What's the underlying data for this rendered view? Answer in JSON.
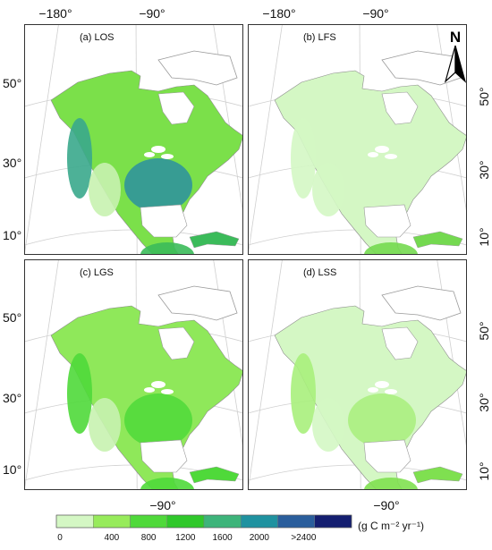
{
  "panels": [
    {
      "id": "a",
      "label": "(a)  LOS",
      "shade": "los"
    },
    {
      "id": "b",
      "label": "(b)  LFS",
      "shade": "lfs"
    },
    {
      "id": "c",
      "label": "(c)  LGS",
      "shade": "lgs"
    },
    {
      "id": "d",
      "label": "(d)  LSS",
      "shade": "lss"
    }
  ],
  "top_ticks": [
    "−180°",
    "−90°"
  ],
  "bottom_tick": "−90°",
  "lat_ticks": [
    "50°",
    "30°",
    "10°"
  ],
  "north_arrow": "N",
  "legend": {
    "colors": [
      "#d4f7c4",
      "#97eb5b",
      "#4fd93a",
      "#2fc82a",
      "#3db47a",
      "#1f92a0",
      "#2a5e9c",
      "#141e70"
    ],
    "ticks": [
      "0",
      "400",
      "800",
      "1200",
      "1600",
      "2000",
      ">2400"
    ],
    "unit": "(g C m⁻² yr⁻¹)"
  },
  "shades": {
    "los": {
      "base": "#7be04a",
      "west": "#3aa88c",
      "east": "#2c8fa0",
      "desert": "#c8f2b0",
      "tropic": "#3bbb5a"
    },
    "lfs": {
      "base": "#d4f7c4",
      "west": "#d4f7c4",
      "east": "#d4f7c4",
      "desert": "#d4f7c4",
      "tropic": "#74d950"
    },
    "lgs": {
      "base": "#8fe85a",
      "west": "#4fd93a",
      "east": "#4fd93a",
      "desert": "#c8f2b0",
      "tropic": "#4fd93a"
    },
    "lss": {
      "base": "#d4f7c4",
      "west": "#a8ef7c",
      "east": "#a8ef7c",
      "desert": "#d4f7c4",
      "tropic": "#7fe050"
    }
  }
}
